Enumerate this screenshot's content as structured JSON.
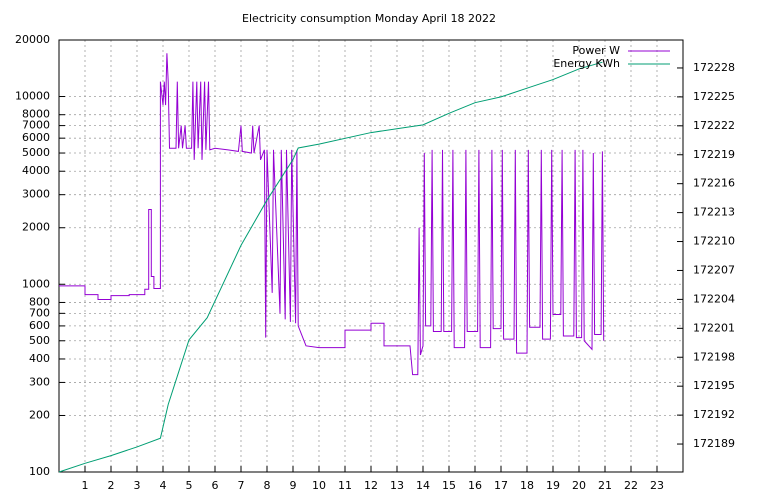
{
  "chart_data": {
    "type": "line",
    "title": "Electricity consumption Monday April 18 2022",
    "xlim": [
      0,
      24
    ],
    "xticks": [
      1,
      2,
      3,
      4,
      5,
      6,
      7,
      8,
      9,
      10,
      11,
      12,
      13,
      14,
      15,
      16,
      17,
      18,
      19,
      20,
      21,
      22,
      23
    ],
    "ylim": [
      100,
      20000
    ],
    "ylog": true,
    "yticks": [
      100,
      200,
      300,
      400,
      500,
      600,
      700,
      800,
      1000,
      2000,
      3000,
      4000,
      5000,
      6000,
      7000,
      8000,
      10000,
      20000
    ],
    "y2lim": [
      172186.1,
      172230.9
    ],
    "y2ticks": [
      172189,
      172192,
      172195,
      172198,
      172201,
      172204,
      172207,
      172210,
      172213,
      172216,
      172219,
      172222,
      172225,
      172228
    ],
    "grid": true,
    "legend": "top-right",
    "series": [
      {
        "name": "Power W",
        "color": "#9400d3",
        "x": [
          0,
          1,
          1,
          1.5,
          1.5,
          2,
          2,
          2.7,
          2.7,
          3.3,
          3.3,
          3.45,
          3.45,
          3.55,
          3.55,
          3.65,
          3.65,
          3.9,
          3.9,
          4.0,
          4.05,
          4.1,
          4.15,
          4.2,
          4.25,
          4.5,
          4.55,
          4.6,
          4.7,
          4.75,
          4.85,
          4.9,
          5.1,
          5.15,
          5.2,
          5.3,
          5.35,
          5.45,
          5.5,
          5.6,
          5.65,
          5.75,
          5.8,
          6.0,
          6.5,
          6.9,
          7.0,
          7.05,
          7.4,
          7.45,
          7.5,
          7.7,
          7.75,
          7.9,
          7.95,
          8.0,
          8.2,
          8.25,
          8.5,
          8.55,
          8.7,
          8.75,
          8.9,
          8.95,
          9.1,
          9.15,
          9.2,
          9.5,
          10,
          11,
          11,
          12,
          12,
          12.5,
          12.5,
          13.5,
          13.6,
          13.8,
          13.85,
          13.9,
          14.0,
          14.05,
          14.1,
          14.3,
          14.35,
          14.4,
          14.7,
          14.75,
          14.8,
          15.1,
          15.15,
          15.2,
          15.6,
          15.65,
          15.7,
          16.1,
          16.15,
          16.2,
          16.6,
          16.65,
          16.7,
          17.0,
          17.05,
          17.1,
          17.5,
          17.55,
          17.6,
          18.0,
          18.05,
          18.1,
          18.5,
          18.55,
          18.6,
          18.9,
          18.95,
          19.0,
          19.3,
          19.35,
          19.4,
          19.8,
          19.85,
          19.9,
          20.1,
          20.15,
          20.2,
          20.5,
          20.55,
          20.6,
          20.85,
          20.9,
          20.95
        ],
        "values": [
          980,
          980,
          880,
          880,
          830,
          830,
          870,
          870,
          880,
          880,
          940,
          940,
          2500,
          2500,
          1100,
          1100,
          950,
          950,
          12000,
          9000,
          12000,
          9000,
          17000,
          12000,
          5300,
          5300,
          12000,
          5300,
          7000,
          5300,
          7000,
          5300,
          5300,
          12000,
          4600,
          12000,
          5300,
          12000,
          4600,
          12000,
          5200,
          12000,
          5200,
          5300,
          5200,
          5100,
          7000,
          5100,
          5000,
          7000,
          5000,
          7000,
          4600,
          5200,
          520,
          5200,
          900,
          5200,
          700,
          5200,
          650,
          5200,
          630,
          5200,
          620,
          5200,
          600,
          470,
          460,
          460,
          570,
          570,
          620,
          620,
          470,
          470,
          330,
          330,
          2000,
          420,
          470,
          5000,
          600,
          600,
          5200,
          560,
          560,
          5200,
          560,
          560,
          5200,
          460,
          460,
          5200,
          560,
          560,
          5200,
          460,
          460,
          5200,
          580,
          580,
          5200,
          510,
          510,
          5200,
          430,
          430,
          5200,
          590,
          590,
          5200,
          510,
          510,
          5200,
          690,
          690,
          5200,
          530,
          530,
          5200,
          520,
          520,
          5200,
          500,
          450,
          5000,
          540,
          540,
          5100,
          500
        ]
      },
      {
        "name": "Energy KWh",
        "color": "#009e73",
        "axis": "y2",
        "x": [
          0,
          1,
          2,
          3,
          3.9,
          4.2,
          5,
          5.7,
          7,
          8,
          9,
          9.2,
          10,
          12,
          14,
          15,
          16,
          17,
          18,
          19,
          20,
          20.9
        ],
        "values": [
          172186.1,
          172187.0,
          172187.8,
          172188.7,
          172189.6,
          172193.1,
          172199.8,
          172202.1,
          172209.6,
          172214.3,
          172218.5,
          172219.7,
          172220.1,
          172221.3,
          172222.1,
          172223.3,
          172224.4,
          172225.0,
          172225.9,
          172226.8,
          172227.9,
          172228.6
        ]
      }
    ]
  }
}
